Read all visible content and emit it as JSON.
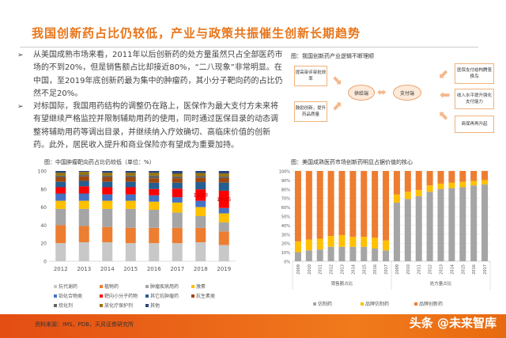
{
  "title": "我国创新药占比仍较低，产业与政策共振催生创新长期趋势",
  "bullets": [
    "从美国成熟市场来看，2011年以后创新药的处方量虽然只占全部医药市场的不到20%，但是销售额占比却接近80%，“二八现象”非常明显。在中国，至2019年底创新药最为集中的肿瘤药，其小分子靶向药的占比仍然不足20%。",
    "对标国际，我国用药结构的调整仍在路上，医保作为最大支付方未来将有望继续严格监控并限制辅助用药的使用，同时通过医保目录的动态调整将辅助用药等调出目录，并继续纳入疗效确切、高临床价值的创新药。此外，居民收入提升和商业保险亦有望成为重要加持。"
  ],
  "bullet_marker": "➢",
  "diagram": {
    "caption": "图：我国创新药产业逻辑不断理顺",
    "supply": "供给端",
    "payment": "支付端",
    "left_boxes": [
      "提高审评审批效率",
      "鼓励创新，提升药品质量"
    ],
    "right_boxes": [
      "医保支付结构腾笼换鸟",
      "收入水平提升强化支付能力",
      "商保再再升起"
    ],
    "arrow_color": "#f5b78a"
  },
  "chart_data": [
    {
      "type": "bar",
      "stacked": true,
      "title": "图：中国肿瘤靶向药占比仍较低（单位：%）",
      "categories": [
        "2012",
        "2013",
        "2014",
        "2015",
        "2016",
        "2017",
        "2018",
        "2019"
      ],
      "ylim": [
        0,
        100
      ],
      "yticks": [
        0,
        20,
        40,
        60,
        80,
        100
      ],
      "legend_position": "bottom",
      "series": [
        {
          "name": "抗代谢药",
          "color": "#c8c8c8",
          "values": [
            20,
            21,
            21,
            20,
            20,
            20,
            21,
            18
          ]
        },
        {
          "name": "植物药",
          "color": "#ed7d31",
          "values": [
            20,
            18,
            17,
            17,
            17,
            17,
            16,
            15
          ]
        },
        {
          "name": "肿瘤疾病用药",
          "color": "#a5a5a5",
          "values": [
            18,
            19,
            20,
            21,
            20,
            17,
            13,
            10
          ]
        },
        {
          "name": "激素",
          "color": "#ffc000",
          "values": [
            9,
            9,
            9,
            9,
            9,
            11,
            10,
            10
          ]
        },
        {
          "name": "铂化合物类",
          "color": "#4472c4",
          "values": [
            8,
            8,
            7,
            7,
            7,
            6,
            7,
            6
          ]
        },
        {
          "name": "靶向小分子药物",
          "color": "#ff0000",
          "values": [
            7,
            8,
            8,
            8,
            7,
            9.5,
            12.68,
            19.15
          ]
        },
        {
          "name": "其它抗肿瘤药",
          "color": "#255e91",
          "values": [
            6,
            6,
            6,
            6,
            7,
            6.5,
            8,
            9
          ]
        },
        {
          "name": "抗生素类",
          "color": "#9e480e",
          "values": [
            5,
            5,
            5,
            5,
            5,
            5,
            5,
            5
          ]
        },
        {
          "name": "烷化剂",
          "color": "#636363",
          "values": [
            2,
            2,
            2,
            2,
            3,
            2,
            2,
            2
          ]
        },
        {
          "name": "放化疗保护剂",
          "color": "#997300",
          "values": [
            3,
            3,
            3,
            3,
            3,
            3,
            3,
            3
          ]
        },
        {
          "name": "其他",
          "color": "#264478",
          "values": [
            2,
            1,
            2,
            2,
            2,
            3,
            2.32,
            2.85
          ]
        }
      ],
      "data_labels": {
        "2018": "12.68",
        "2019": "19.15"
      }
    },
    {
      "type": "bar",
      "stacked": true,
      "title": "图：美国成熟医药市场创新药明显占据价值的核心",
      "categories": [
        "2009",
        "2010",
        "2011",
        "2012",
        "2013",
        "2014",
        "2015",
        "2016",
        "2017",
        "2009",
        "2010",
        "2011",
        "2012",
        "2013",
        "2014",
        "2015",
        "2016",
        "2017"
      ],
      "groups": [
        {
          "label": "销售额占比",
          "count": 9
        },
        {
          "label": "处方量占比",
          "count": 9
        }
      ],
      "ylim": [
        0,
        100
      ],
      "yticks": [
        "0%",
        "10%",
        "20%",
        "30%",
        "40%",
        "50%",
        "60%",
        "70%",
        "80%",
        "90%",
        "100%"
      ],
      "legend_position": "bottom",
      "series": [
        {
          "name": "仿制药",
          "color": "#a5a5a5",
          "values": [
            10,
            12,
            13,
            16,
            16,
            16,
            16,
            14,
            12,
            65,
            69,
            72,
            77,
            80,
            81,
            82,
            84,
            85
          ]
        },
        {
          "name": "品牌仿制药",
          "color": "#ffc000",
          "values": [
            12,
            12,
            12,
            12,
            13,
            11,
            11,
            12,
            11,
            9,
            8,
            7,
            7,
            6,
            6,
            6,
            5,
            5
          ]
        },
        {
          "name": "品牌创新药",
          "color": "#ed7d31",
          "values": [
            78,
            76,
            75,
            72,
            71,
            73,
            73,
            74,
            77,
            26,
            23,
            21,
            16,
            14,
            13,
            12,
            11,
            10
          ]
        }
      ]
    }
  ],
  "footer": {
    "source": "资料来源：IMS，PDB，天风证券研究所",
    "watermark": "头条 @未来智库"
  }
}
